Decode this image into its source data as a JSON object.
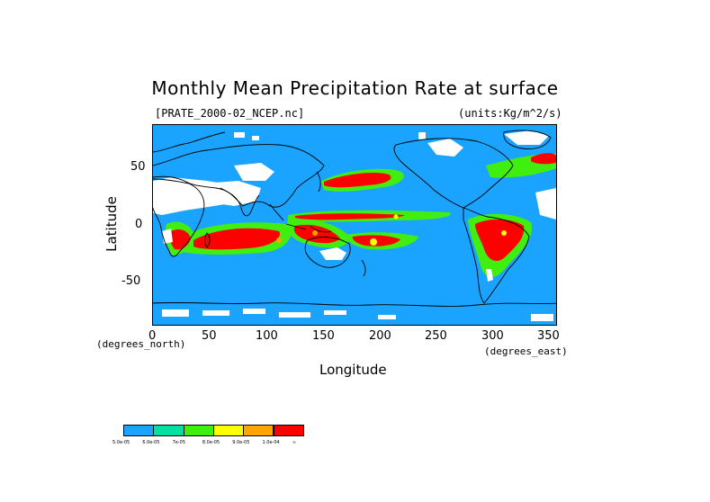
{
  "title": "Monthly Mean Precipitation Rate at surface",
  "source_file": "[PRATE_2000-02_NCEP.nc]",
  "units": "(units:Kg/m^2/s)",
  "x_axis": {
    "label": "Longitude",
    "unit_note": "(degrees_east)",
    "ticks": [
      "0",
      "50",
      "100",
      "150",
      "200",
      "250",
      "300",
      "350"
    ]
  },
  "y_axis": {
    "label": "Latitude",
    "unit_note": "(degrees_north)",
    "ticks": [
      "50",
      "0",
      "-50"
    ]
  },
  "legend": {
    "colors": [
      "#1aa3ff",
      "#00e0a0",
      "#40ee10",
      "#ffff00",
      "#ffa500",
      "#ff0000"
    ],
    "labels": [
      "5.0e-05",
      "6.0e-05",
      "7e-05",
      "8.0e-05",
      "9.0e-05",
      "1.0e-04",
      "∞"
    ]
  },
  "map_data": {
    "type": "heatmap",
    "projection": "equirectangular",
    "xlim": [
      0,
      360
    ],
    "ylim": [
      -90,
      90
    ],
    "colors": {
      "ocean_base": "#1aa3ff",
      "missing": "#ffffff",
      "coast": "#000000"
    },
    "regions": [
      {
        "level": 5,
        "lon": [
          150,
          200
        ],
        "lat": [
          36,
          48
        ]
      },
      {
        "level": 5,
        "lon": [
          60,
          110
        ],
        "lat": [
          -10,
          -25
        ]
      },
      {
        "level": 5,
        "lon": [
          120,
          165
        ],
        "lat": [
          0,
          -20
        ]
      },
      {
        "level": 5,
        "lon": [
          175,
          215
        ],
        "lat": [
          -10,
          -20
        ]
      },
      {
        "level": 5,
        "lon": [
          130,
          225
        ],
        "lat": [
          2,
          10
        ]
      },
      {
        "level": 5,
        "lon": [
          295,
          335
        ],
        "lat": [
          5,
          -25
        ]
      },
      {
        "level": 5,
        "lon": [
          20,
          45
        ],
        "lat": [
          -10,
          -25
        ]
      },
      {
        "level": 5,
        "lon": [
          280,
          300
        ],
        "lat": [
          -35,
          -38
        ]
      },
      {
        "level": 5,
        "lon": [
          330,
          350
        ],
        "lat": [
          58,
          65
        ]
      }
    ]
  }
}
